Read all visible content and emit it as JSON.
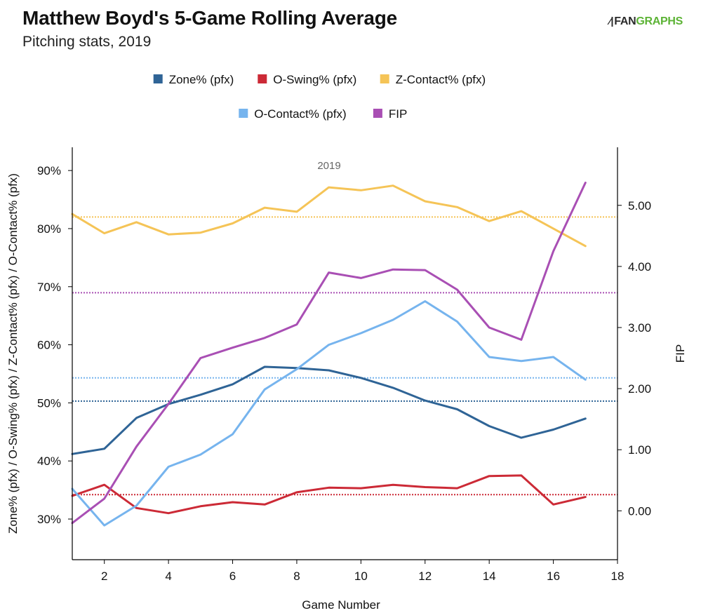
{
  "header": {
    "title": "Matthew Boyd's 5-Game Rolling Average",
    "subtitle": "Pitching stats, 2019",
    "logo_text_dark": "FAN",
    "logo_text_green": "GRAPHS"
  },
  "chart_data": {
    "type": "line",
    "title": "Matthew Boyd's 5-Game Rolling Average",
    "subtitle": "Pitching stats, 2019",
    "xlabel": "Game Number",
    "ylabel_left": "Zone% (pfx) / O-Swing% (pfx) / Z-Contact% (pfx) / O-Contact% (pfx)",
    "ylabel_right": "FIP",
    "annotation": "2019",
    "xlim": [
      1,
      18
    ],
    "ylim_left": [
      23,
      94
    ],
    "ylim_right": [
      -0.8,
      5.95
    ],
    "x_ticks": [
      2,
      4,
      6,
      8,
      10,
      12,
      14,
      16,
      18
    ],
    "x_tick_labels": [
      "2",
      "4",
      "6",
      "8",
      "10",
      "12",
      "14",
      "16",
      "18"
    ],
    "y_left_ticks": [
      30,
      40,
      50,
      60,
      70,
      80,
      90
    ],
    "y_left_tick_labels": [
      "30%",
      "40%",
      "50%",
      "60%",
      "70%",
      "80%",
      "90%"
    ],
    "y_right_ticks": [
      0,
      1,
      2,
      3,
      4,
      5
    ],
    "y_right_tick_labels": [
      "0.00",
      "1.00",
      "2.00",
      "3.00",
      "4.00",
      "5.00"
    ],
    "x": [
      1,
      2,
      3,
      4,
      5,
      6,
      7,
      8,
      9,
      10,
      11,
      12,
      13,
      14,
      15,
      16,
      17
    ],
    "legend_placement": "top-center",
    "series": [
      {
        "name": "Zone% (pfx)",
        "axis": "left",
        "color": "#2f6496",
        "values": [
          41.2,
          42.1,
          47.4,
          49.8,
          51.4,
          53.2,
          56.2,
          56.0,
          55.6,
          54.3,
          52.6,
          50.4,
          48.9,
          46.0,
          44.0,
          45.4,
          47.3
        ],
        "average": 50.3
      },
      {
        "name": "O-Swing% (pfx)",
        "axis": "left",
        "color": "#cc2a36",
        "values": [
          34.0,
          35.9,
          31.9,
          31.0,
          32.2,
          32.9,
          32.5,
          34.6,
          35.4,
          35.3,
          35.9,
          35.5,
          35.3,
          37.4,
          37.5,
          32.5,
          33.8
        ],
        "average": 34.2
      },
      {
        "name": "Z-Contact% (pfx)",
        "axis": "left",
        "color": "#f5c457",
        "values": [
          82.5,
          79.2,
          81.1,
          79.0,
          79.3,
          80.9,
          83.6,
          82.9,
          87.1,
          86.6,
          87.4,
          84.7,
          83.7,
          81.3,
          83.0,
          80.0,
          77.0
        ],
        "average": 82.0
      },
      {
        "name": "O-Contact% (pfx)",
        "axis": "left",
        "color": "#76b4ee",
        "values": [
          35.2,
          28.9,
          32.3,
          39.0,
          41.1,
          44.6,
          52.3,
          55.8,
          60.0,
          62.0,
          64.3,
          67.5,
          64.0,
          57.9,
          57.2,
          57.9,
          54.0
        ],
        "average": 54.3
      },
      {
        "name": "FIP",
        "axis": "right",
        "color": "#a94fb4",
        "values": [
          -0.2,
          0.2,
          1.05,
          1.75,
          2.5,
          2.67,
          2.83,
          3.05,
          3.9,
          3.81,
          3.95,
          3.94,
          3.62,
          3.0,
          2.8,
          4.25,
          5.37
        ],
        "average": 3.57
      }
    ]
  }
}
